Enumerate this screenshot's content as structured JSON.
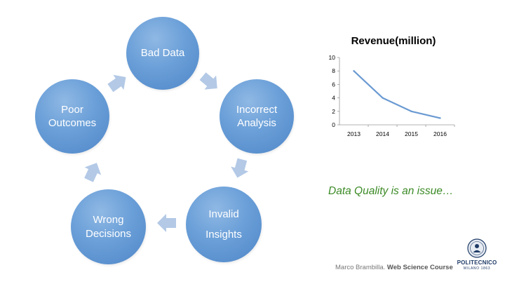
{
  "cycle": {
    "nodes": [
      {
        "lines": [
          "Bad Data"
        ]
      },
      {
        "lines": [
          "Incorrect",
          "Analysis"
        ]
      },
      {
        "lines": [
          "Invalid",
          "Insights"
        ]
      },
      {
        "lines": [
          "Wrong",
          "Decisions"
        ]
      },
      {
        "lines": [
          "Poor",
          "Outcomes"
        ]
      }
    ],
    "colors": {
      "node": "#5b8fcc",
      "arrow": "#b3c9e6"
    }
  },
  "chart_data": {
    "type": "line",
    "title": "Revenue(million)",
    "categories": [
      "2013",
      "2014",
      "2015",
      "2016"
    ],
    "series": [
      {
        "values": [
          8,
          4,
          2,
          1
        ]
      }
    ],
    "ylim": [
      0,
      10
    ],
    "yticks": [
      "10",
      "8",
      "6",
      "4",
      "2",
      "0"
    ],
    "xlabel": "",
    "ylabel": "",
    "grid": false,
    "line_color": "#6a9ad2"
  },
  "callout": "Data Quality is an issue…",
  "footer": {
    "author": "Marco Brambilla.",
    "course": "Web Science Course"
  },
  "logo": {
    "name": "POLITECNICO",
    "sub": "MILANO 1863",
    "icon": "seal-icon"
  }
}
